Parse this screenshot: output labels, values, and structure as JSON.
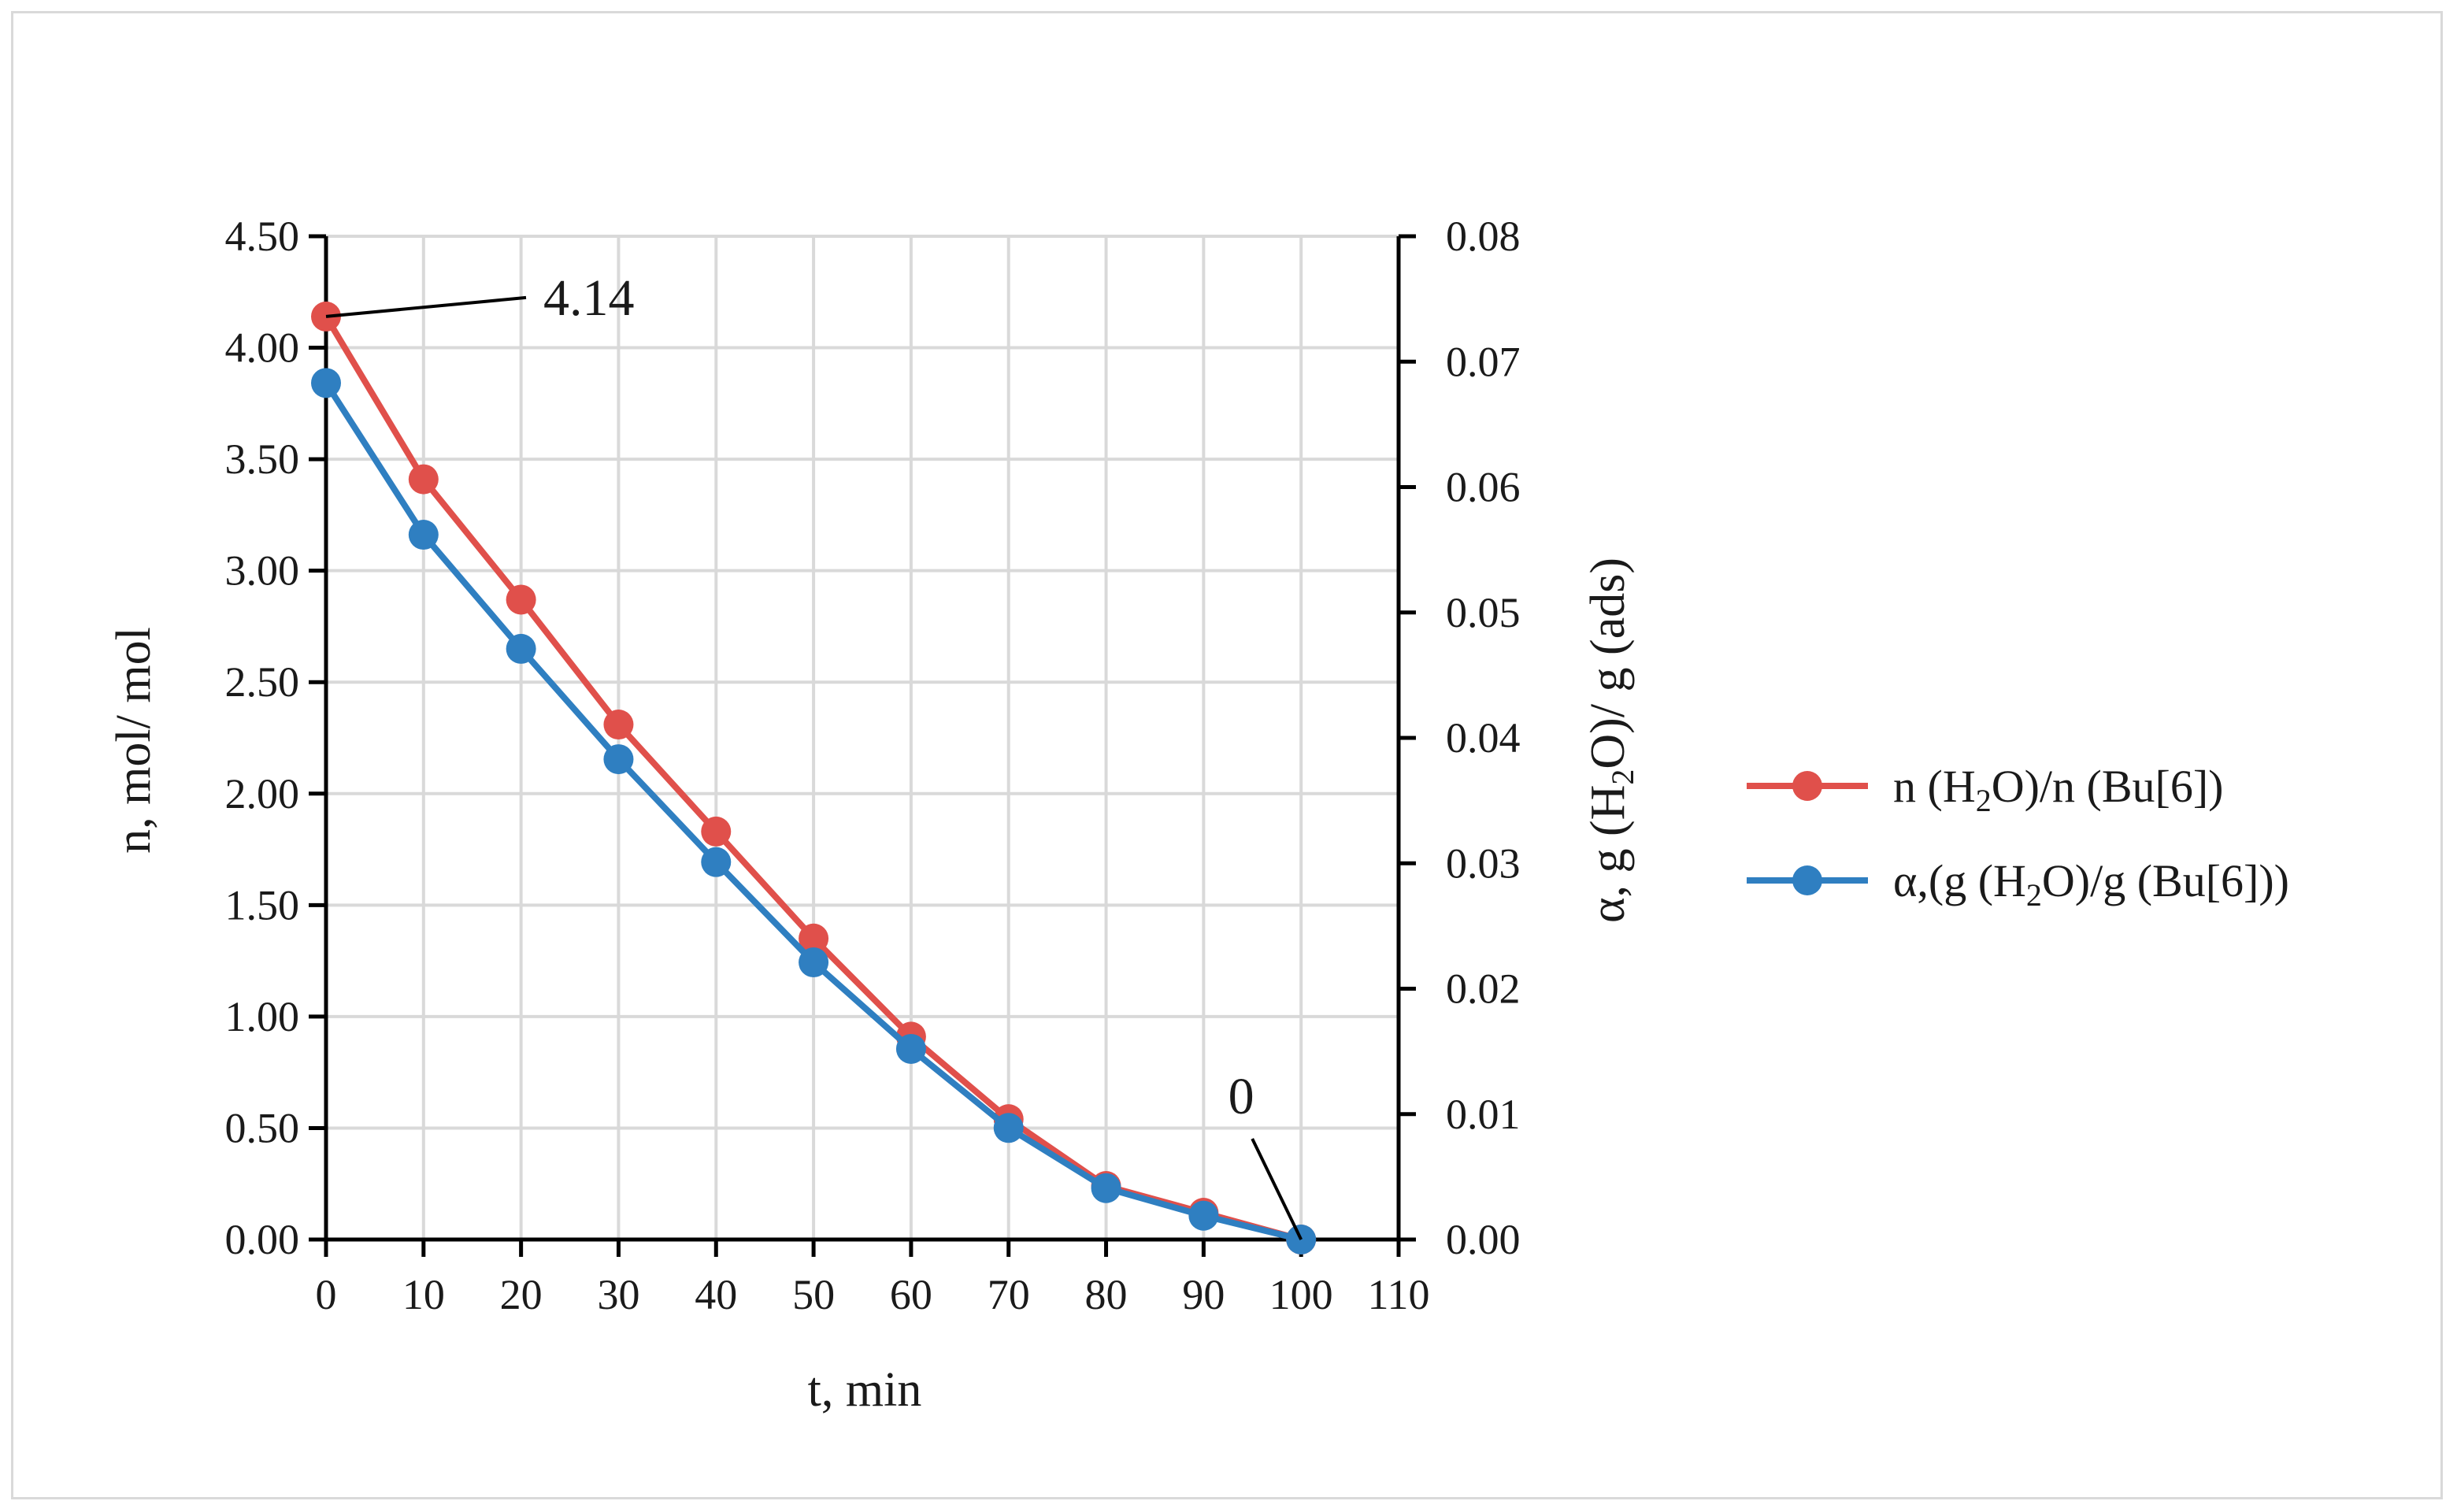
{
  "chart_data": {
    "type": "line",
    "title": "",
    "xlabel": "t, min",
    "ylabel_left": "n, mol/ mol",
    "ylabel_right": "α, g (H2O)/ g (ads)",
    "xlim": [
      0,
      110
    ],
    "x_ticks": [
      0,
      10,
      20,
      30,
      40,
      50,
      60,
      70,
      80,
      90,
      100,
      110
    ],
    "x_tick_labels": [
      "0",
      "10",
      "20",
      "30",
      "40",
      "50",
      "60",
      "70",
      "80",
      "90",
      "100",
      "110"
    ],
    "ylim_left": [
      0,
      4.5
    ],
    "y_ticks_left": [
      0,
      0.5,
      1.0,
      1.5,
      2.0,
      2.5,
      3.0,
      3.5,
      4.0,
      4.5
    ],
    "y_tick_labels_left": [
      "0.00",
      "0.50",
      "1.00",
      "1.50",
      "2.00",
      "2.50",
      "3.00",
      "3.50",
      "4.00",
      "4.50"
    ],
    "ylim_right": [
      0,
      0.08
    ],
    "y_ticks_right": [
      0,
      0.01,
      0.02,
      0.03,
      0.04,
      0.05,
      0.06,
      0.07,
      0.08
    ],
    "y_tick_labels_right": [
      "0.00",
      "0.01",
      "0.02",
      "0.03",
      "0.04",
      "0.05",
      "0.06",
      "0.07",
      "0.08"
    ],
    "grid": true,
    "legend_position": "right",
    "x": [
      0,
      10,
      20,
      30,
      40,
      50,
      60,
      70,
      80,
      90,
      100
    ],
    "series": [
      {
        "name": "n (H2O)/n (Bu[6])",
        "legend_parts": [
          "n (H",
          "2",
          "O)/n (Bu[6])"
        ],
        "axis": "left",
        "color": "#e0504b",
        "values": [
          4.14,
          3.41,
          2.87,
          2.31,
          1.83,
          1.35,
          0.91,
          0.54,
          0.24,
          0.12,
          0.0
        ]
      },
      {
        "name": "α,(g (H2O)/g (Bu[6]))",
        "legend_parts": [
          "α,(g (H",
          "2",
          "O)/g (Bu[6]))"
        ],
        "axis": "right",
        "color": "#2f7fc1",
        "values": [
          0.0683,
          0.0562,
          0.0471,
          0.0383,
          0.0301,
          0.0221,
          0.0152,
          0.0089,
          0.0041,
          0.0019,
          0.0
        ]
      }
    ],
    "annotations": [
      {
        "text": "4.14",
        "x": 0,
        "y": 4.14,
        "axis": "left"
      },
      {
        "text": "0",
        "x": 100,
        "y": 0,
        "axis": "left"
      }
    ]
  }
}
